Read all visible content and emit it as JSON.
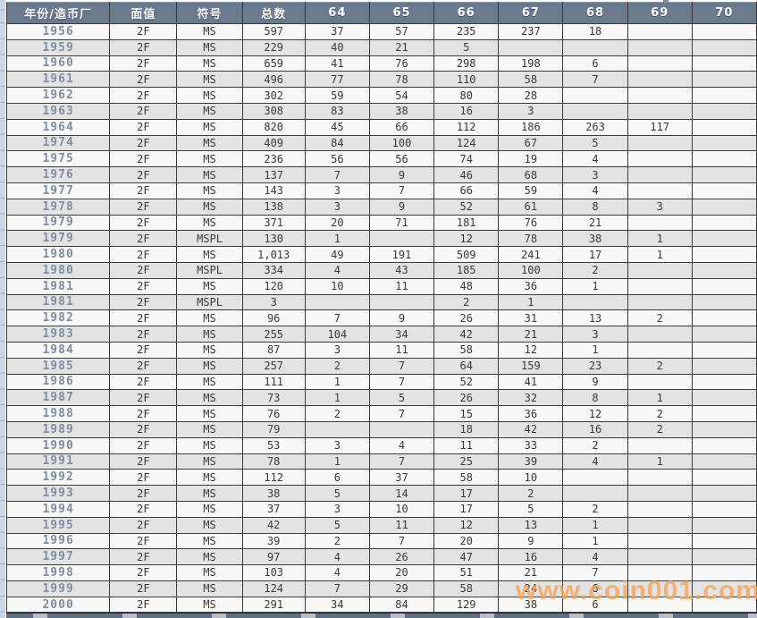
{
  "watermark": {
    "text": "www.coin001.com",
    "color": "#f6a45a"
  },
  "colors": {
    "header_bg": "#6b7a8f",
    "header_text": "#ffffff",
    "row_light": "#f8f8f8",
    "row_dark": "#e3e3e3",
    "year_text": "#7e8da2",
    "cell_text": "#3a3a3a",
    "grid_border": "#3c3c3c",
    "sheet_edge_strip": "#ccd7e5"
  },
  "table": {
    "columns": [
      "年份/造币厂",
      "面值",
      "符号",
      "总数",
      "64",
      "65",
      "66",
      "67",
      "68",
      "69",
      "70"
    ],
    "rows": [
      {
        "year": "1956",
        "denom": "2F",
        "symbol": "MS",
        "total": "597",
        "grades": [
          "37",
          "57",
          "235",
          "237",
          "18",
          "",
          ""
        ]
      },
      {
        "year": "1959",
        "denom": "2F",
        "symbol": "MS",
        "total": "229",
        "grades": [
          "40",
          "21",
          "5",
          "",
          "",
          "",
          ""
        ]
      },
      {
        "year": "1960",
        "denom": "2F",
        "symbol": "MS",
        "total": "659",
        "grades": [
          "41",
          "76",
          "298",
          "198",
          "6",
          "",
          ""
        ]
      },
      {
        "year": "1961",
        "denom": "2F",
        "symbol": "MS",
        "total": "496",
        "grades": [
          "77",
          "78",
          "110",
          "58",
          "7",
          "",
          ""
        ]
      },
      {
        "year": "1962",
        "denom": "2F",
        "symbol": "MS",
        "total": "302",
        "grades": [
          "59",
          "54",
          "80",
          "28",
          "",
          "",
          ""
        ]
      },
      {
        "year": "1963",
        "denom": "2F",
        "symbol": "MS",
        "total": "308",
        "grades": [
          "83",
          "38",
          "16",
          "3",
          "",
          "",
          ""
        ]
      },
      {
        "year": "1964",
        "denom": "2F",
        "symbol": "MS",
        "total": "820",
        "grades": [
          "45",
          "66",
          "112",
          "186",
          "263",
          "117",
          ""
        ]
      },
      {
        "year": "1974",
        "denom": "2F",
        "symbol": "MS",
        "total": "409",
        "grades": [
          "84",
          "100",
          "124",
          "67",
          "5",
          "",
          ""
        ]
      },
      {
        "year": "1975",
        "denom": "2F",
        "symbol": "MS",
        "total": "236",
        "grades": [
          "56",
          "56",
          "74",
          "19",
          "4",
          "",
          ""
        ]
      },
      {
        "year": "1976",
        "denom": "2F",
        "symbol": "MS",
        "total": "137",
        "grades": [
          "7",
          "9",
          "46",
          "68",
          "3",
          "",
          ""
        ]
      },
      {
        "year": "1977",
        "denom": "2F",
        "symbol": "MS",
        "total": "143",
        "grades": [
          "3",
          "7",
          "66",
          "59",
          "4",
          "",
          ""
        ]
      },
      {
        "year": "1978",
        "denom": "2F",
        "symbol": "MS",
        "total": "138",
        "grades": [
          "3",
          "9",
          "52",
          "61",
          "8",
          "3",
          ""
        ]
      },
      {
        "year": "1979",
        "denom": "2F",
        "symbol": "MS",
        "total": "371",
        "grades": [
          "20",
          "71",
          "181",
          "76",
          "21",
          "",
          ""
        ]
      },
      {
        "year": "1979",
        "denom": "2F",
        "symbol": "MSPL",
        "total": "130",
        "grades": [
          "1",
          "",
          "12",
          "78",
          "38",
          "1",
          ""
        ]
      },
      {
        "year": "1980",
        "denom": "2F",
        "symbol": "MS",
        "total": "1,013",
        "grades": [
          "49",
          "191",
          "509",
          "241",
          "17",
          "1",
          ""
        ]
      },
      {
        "year": "1980",
        "denom": "2F",
        "symbol": "MSPL",
        "total": "334",
        "grades": [
          "4",
          "43",
          "185",
          "100",
          "2",
          "",
          ""
        ]
      },
      {
        "year": "1981",
        "denom": "2F",
        "symbol": "MS",
        "total": "120",
        "grades": [
          "10",
          "11",
          "48",
          "36",
          "1",
          "",
          ""
        ]
      },
      {
        "year": "1981",
        "denom": "2F",
        "symbol": "MSPL",
        "total": "3",
        "grades": [
          "",
          "",
          "2",
          "1",
          "",
          "",
          ""
        ]
      },
      {
        "year": "1982",
        "denom": "2F",
        "symbol": "MS",
        "total": "96",
        "grades": [
          "7",
          "9",
          "26",
          "31",
          "13",
          "2",
          ""
        ]
      },
      {
        "year": "1983",
        "denom": "2F",
        "symbol": "MS",
        "total": "255",
        "grades": [
          "104",
          "34",
          "42",
          "21",
          "3",
          "",
          ""
        ]
      },
      {
        "year": "1984",
        "denom": "2F",
        "symbol": "MS",
        "total": "87",
        "grades": [
          "3",
          "11",
          "58",
          "12",
          "1",
          "",
          ""
        ]
      },
      {
        "year": "1985",
        "denom": "2F",
        "symbol": "MS",
        "total": "257",
        "grades": [
          "2",
          "7",
          "64",
          "159",
          "23",
          "2",
          ""
        ]
      },
      {
        "year": "1986",
        "denom": "2F",
        "symbol": "MS",
        "total": "111",
        "grades": [
          "1",
          "7",
          "52",
          "41",
          "9",
          "",
          ""
        ]
      },
      {
        "year": "1987",
        "denom": "2F",
        "symbol": "MS",
        "total": "73",
        "grades": [
          "1",
          "5",
          "26",
          "32",
          "8",
          "1",
          ""
        ]
      },
      {
        "year": "1988",
        "denom": "2F",
        "symbol": "MS",
        "total": "76",
        "grades": [
          "2",
          "7",
          "15",
          "36",
          "12",
          "2",
          ""
        ]
      },
      {
        "year": "1989",
        "denom": "2F",
        "symbol": "MS",
        "total": "79",
        "grades": [
          "",
          "",
          "18",
          "42",
          "16",
          "2",
          ""
        ]
      },
      {
        "year": "1990",
        "denom": "2F",
        "symbol": "MS",
        "total": "53",
        "grades": [
          "3",
          "4",
          "11",
          "33",
          "2",
          "",
          ""
        ]
      },
      {
        "year": "1991",
        "denom": "2F",
        "symbol": "MS",
        "total": "78",
        "grades": [
          "1",
          "7",
          "25",
          "39",
          "4",
          "1",
          ""
        ]
      },
      {
        "year": "1992",
        "denom": "2F",
        "symbol": "MS",
        "total": "112",
        "grades": [
          "6",
          "37",
          "58",
          "10",
          "",
          "",
          ""
        ]
      },
      {
        "year": "1993",
        "denom": "2F",
        "symbol": "MS",
        "total": "38",
        "grades": [
          "5",
          "14",
          "17",
          "2",
          "",
          "",
          ""
        ]
      },
      {
        "year": "1994",
        "denom": "2F",
        "symbol": "MS",
        "total": "37",
        "grades": [
          "3",
          "10",
          "17",
          "5",
          "2",
          "",
          ""
        ]
      },
      {
        "year": "1995",
        "denom": "2F",
        "symbol": "MS",
        "total": "42",
        "grades": [
          "5",
          "11",
          "12",
          "13",
          "1",
          "",
          ""
        ]
      },
      {
        "year": "1996",
        "denom": "2F",
        "symbol": "MS",
        "total": "39",
        "grades": [
          "2",
          "7",
          "20",
          "9",
          "1",
          "",
          ""
        ]
      },
      {
        "year": "1997",
        "denom": "2F",
        "symbol": "MS",
        "total": "97",
        "grades": [
          "4",
          "26",
          "47",
          "16",
          "4",
          "",
          ""
        ]
      },
      {
        "year": "1998",
        "denom": "2F",
        "symbol": "MS",
        "total": "103",
        "grades": [
          "4",
          "20",
          "51",
          "21",
          "7",
          "",
          ""
        ]
      },
      {
        "year": "1999",
        "denom": "2F",
        "symbol": "MS",
        "total": "124",
        "grades": [
          "7",
          "29",
          "58",
          "24",
          "6",
          "",
          ""
        ]
      },
      {
        "year": "2000",
        "denom": "2F",
        "symbol": "MS",
        "total": "291",
        "grades": [
          "34",
          "84",
          "129",
          "38",
          "6",
          "",
          ""
        ]
      }
    ]
  }
}
